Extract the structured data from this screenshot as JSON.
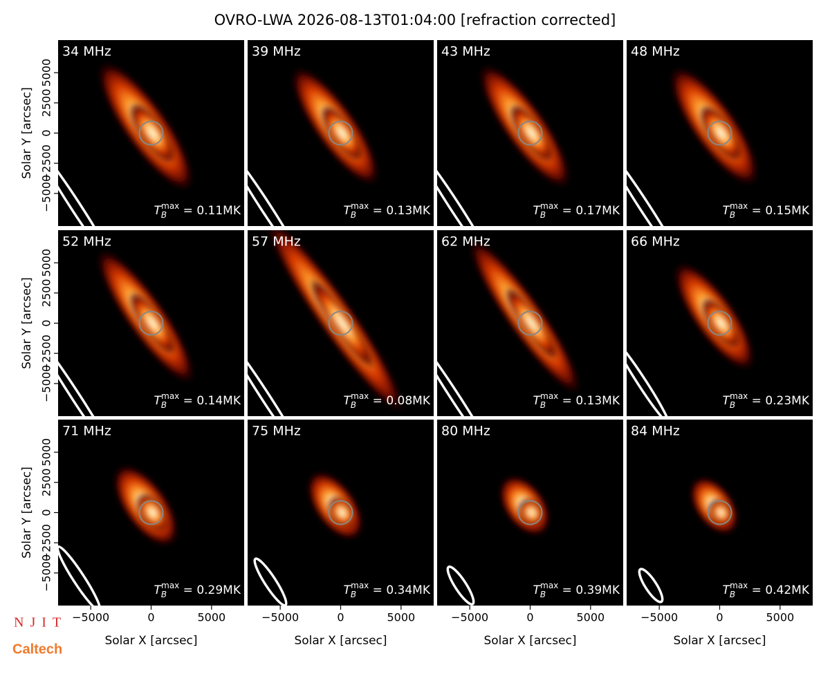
{
  "title": "OVRO-LWA 2026-08-13T01:04:00 [refraction corrected]",
  "logos": [
    "NJIT",
    "Caltech"
  ],
  "chart_data": [
    {
      "type": "image",
      "title": "34 MHz",
      "annotation": {
        "symbol": "T",
        "subscript": "B",
        "superscript": "max",
        "text": " = 0.11MK"
      },
      "xlim": [
        -7700,
        7700
      ],
      "ylim": [
        -7700,
        7700
      ],
      "ylabel": "Solar Y [arcsec]",
      "yticks": [
        {
          "value": -5000,
          "label": "−5000"
        },
        {
          "value": -2500,
          "label": "−2500"
        },
        0,
        2500,
        5000
      ]
    },
    {
      "type": "image",
      "title": "39 MHz",
      "annotation": {
        "symbol": "T",
        "subscript": "B",
        "superscript": "max",
        "text": " = 0.13MK"
      },
      "xlim": [
        -7700,
        7700
      ],
      "ylim": [
        -7700,
        7700
      ]
    },
    {
      "type": "image",
      "title": "43 MHz",
      "annotation": {
        "symbol": "T",
        "subscript": "B",
        "superscript": "max",
        "text": " = 0.17MK"
      },
      "xlim": [
        -7700,
        7700
      ],
      "ylim": [
        -7700,
        7700
      ]
    },
    {
      "type": "image",
      "title": "48 MHz",
      "annotation": {
        "symbol": "T",
        "subscript": "B",
        "superscript": "max",
        "text": " = 0.15MK"
      },
      "xlim": [
        -7700,
        7700
      ],
      "ylim": [
        -7700,
        7700
      ]
    },
    {
      "type": "image",
      "title": "52 MHz",
      "annotation": {
        "symbol": "T",
        "subscript": "B",
        "superscript": "max",
        "text": " = 0.14MK"
      },
      "xlim": [
        -7700,
        7700
      ],
      "ylim": [
        -7700,
        7700
      ],
      "ylabel": "Solar Y [arcsec]",
      "yticks": [
        {
          "value": -5000,
          "label": "−5000"
        },
        {
          "value": -2500,
          "label": "−2500"
        },
        0,
        2500,
        5000
      ]
    },
    {
      "type": "image",
      "title": "57 MHz",
      "annotation": {
        "symbol": "T",
        "subscript": "B",
        "superscript": "max",
        "text": " = 0.08MK"
      },
      "xlim": [
        -7700,
        7700
      ],
      "ylim": [
        -7700,
        7700
      ]
    },
    {
      "type": "image",
      "title": "62 MHz",
      "annotation": {
        "symbol": "T",
        "subscript": "B",
        "superscript": "max",
        "text": " = 0.13MK"
      },
      "xlim": [
        -7700,
        7700
      ],
      "ylim": [
        -7700,
        7700
      ]
    },
    {
      "type": "image",
      "title": "66 MHz",
      "annotation": {
        "symbol": "T",
        "subscript": "B",
        "superscript": "max",
        "text": " = 0.23MK"
      },
      "xlim": [
        -7700,
        7700
      ],
      "ylim": [
        -7700,
        7700
      ]
    },
    {
      "type": "image",
      "title": "71 MHz",
      "annotation": {
        "symbol": "T",
        "subscript": "B",
        "superscript": "max",
        "text": " = 0.29MK"
      },
      "xlim": [
        -7700,
        7700
      ],
      "ylim": [
        -7700,
        7700
      ],
      "ylabel": "Solar Y [arcsec]",
      "yticks": [
        {
          "value": -5000,
          "label": "−5000"
        },
        {
          "value": -2500,
          "label": "−2500"
        },
        0,
        2500,
        5000
      ],
      "xlabel": "Solar X [arcsec]",
      "xticks": [
        {
          "value": -5000,
          "label": "−5000"
        },
        0,
        5000
      ]
    },
    {
      "type": "image",
      "title": "75 MHz",
      "annotation": {
        "symbol": "T",
        "subscript": "B",
        "superscript": "max",
        "text": " = 0.34MK"
      },
      "xlim": [
        -7700,
        7700
      ],
      "ylim": [
        -7700,
        7700
      ],
      "xlabel": "Solar X [arcsec]",
      "xticks": [
        {
          "value": -5000,
          "label": "−5000"
        },
        0,
        5000
      ]
    },
    {
      "type": "image",
      "title": "80 MHz",
      "annotation": {
        "symbol": "T",
        "subscript": "B",
        "superscript": "max",
        "text": " = 0.39MK"
      },
      "xlim": [
        -7700,
        7700
      ],
      "ylim": [
        -7700,
        7700
      ],
      "xlabel": "Solar X [arcsec]",
      "xticks": [
        {
          "value": -5000,
          "label": "−5000"
        },
        0,
        5000
      ]
    },
    {
      "type": "image",
      "title": "84 MHz",
      "annotation": {
        "symbol": "T",
        "subscript": "B",
        "superscript": "max",
        "text": " = 0.42MK"
      },
      "xlim": [
        -7700,
        7700
      ],
      "ylim": [
        -7700,
        7700
      ],
      "xlabel": "Solar X [arcsec]",
      "xticks": [
        {
          "value": -5000,
          "label": "−5000"
        },
        0,
        5000
      ]
    }
  ]
}
